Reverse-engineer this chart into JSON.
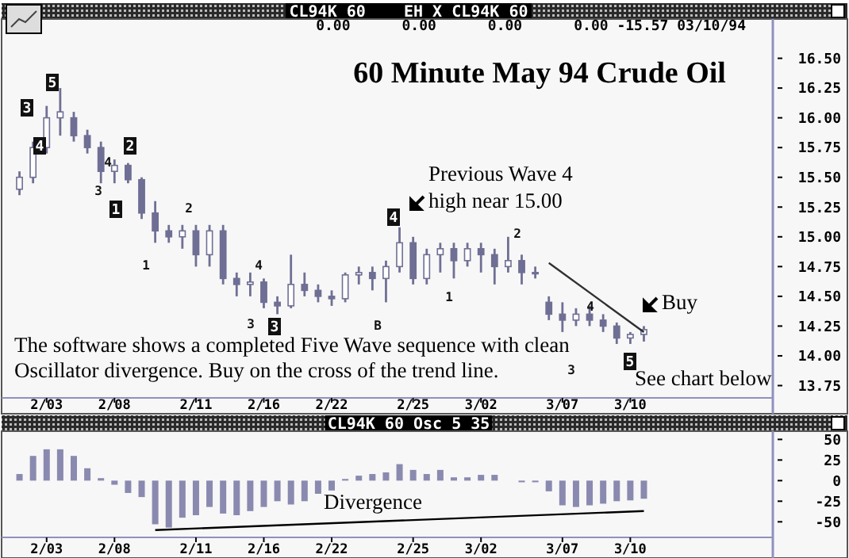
{
  "chart_data": [
    {
      "type": "candlestick",
      "title": "60 Minute May 94 Crude Oil",
      "subtitle": "CL94K 60    EH X CL94K 60",
      "color": "#6f6f95",
      "categories": [
        null,
        null,
        "2/03",
        null,
        null,
        null,
        null,
        "2/08",
        null,
        null,
        null,
        null,
        null,
        "2/11",
        null,
        null,
        null,
        null,
        "2/16",
        null,
        null,
        null,
        null,
        "2/22",
        null,
        null,
        null,
        null,
        null,
        "2/25",
        null,
        null,
        null,
        null,
        "3/02",
        null,
        null,
        null,
        null,
        null,
        "3/07",
        null,
        null,
        null,
        null,
        "3/10",
        null,
        null,
        null,
        null,
        null,
        null,
        null,
        null,
        null,
        null
      ],
      "ohlc": [
        [
          15.4,
          15.55,
          15.35,
          15.5
        ],
        [
          15.5,
          15.8,
          15.45,
          15.75
        ],
        [
          15.75,
          16.1,
          15.7,
          16.0
        ],
        [
          16.0,
          16.25,
          15.85,
          16.05
        ],
        [
          16.0,
          16.05,
          15.8,
          15.85
        ],
        [
          15.85,
          15.9,
          15.7,
          15.75
        ],
        [
          15.75,
          15.8,
          15.45,
          15.55
        ],
        [
          15.55,
          15.65,
          15.45,
          15.6
        ],
        [
          15.6,
          15.62,
          15.45,
          15.48
        ],
        [
          15.48,
          15.5,
          15.15,
          15.2
        ],
        [
          15.2,
          15.3,
          14.95,
          15.05
        ],
        [
          15.05,
          15.1,
          14.95,
          15.0
        ],
        [
          15.0,
          15.1,
          14.9,
          15.05
        ],
        [
          15.05,
          15.1,
          14.75,
          14.85
        ],
        [
          14.85,
          15.1,
          14.75,
          15.05
        ],
        [
          15.05,
          15.1,
          14.6,
          14.65
        ],
        [
          14.65,
          14.7,
          14.5,
          14.6
        ],
        [
          14.6,
          14.7,
          14.5,
          14.62
        ],
        [
          14.62,
          14.65,
          14.4,
          14.45
        ],
        [
          14.45,
          14.5,
          14.35,
          14.42
        ],
        [
          14.42,
          14.85,
          14.4,
          14.6
        ],
        [
          14.6,
          14.7,
          14.5,
          14.55
        ],
        [
          14.55,
          14.6,
          14.45,
          14.5
        ],
        [
          14.5,
          14.55,
          14.42,
          14.48
        ],
        [
          14.48,
          14.7,
          14.45,
          14.68
        ],
        [
          14.68,
          14.75,
          14.6,
          14.7
        ],
        [
          14.7,
          14.75,
          14.55,
          14.65
        ],
        [
          14.65,
          14.8,
          14.45,
          14.75
        ],
        [
          14.75,
          15.08,
          14.7,
          14.95
        ],
        [
          14.95,
          15.0,
          14.6,
          14.65
        ],
        [
          14.65,
          14.9,
          14.6,
          14.85
        ],
        [
          14.85,
          14.95,
          14.7,
          14.9
        ],
        [
          14.9,
          14.95,
          14.65,
          14.8
        ],
        [
          14.8,
          14.95,
          14.75,
          14.9
        ],
        [
          14.9,
          14.95,
          14.7,
          14.85
        ],
        [
          14.85,
          14.9,
          14.6,
          14.75
        ],
        [
          14.75,
          15.0,
          14.7,
          14.8
        ],
        [
          14.8,
          14.85,
          14.6,
          14.7
        ],
        [
          14.7,
          14.75,
          14.65,
          14.7
        ],
        [
          14.45,
          14.5,
          14.3,
          14.35
        ],
        [
          14.35,
          14.45,
          14.2,
          14.3
        ],
        [
          14.3,
          14.4,
          14.25,
          14.35
        ],
        [
          14.35,
          14.42,
          14.25,
          14.3
        ],
        [
          14.3,
          14.35,
          14.2,
          14.25
        ],
        [
          14.25,
          14.28,
          14.1,
          14.15
        ],
        [
          14.15,
          14.2,
          14.1,
          14.18
        ],
        [
          14.18,
          14.25,
          14.12,
          14.22
        ],
        null,
        null,
        null,
        null,
        null,
        null,
        null,
        null,
        null
      ],
      "series": [
        {
          "type": "line",
          "color": "#303030",
          "values": [
            null,
            null,
            null,
            null,
            null,
            null,
            null,
            null,
            null,
            null,
            null,
            null,
            null,
            null,
            null,
            null,
            null,
            null,
            null,
            null,
            null,
            null,
            null,
            null,
            null,
            null,
            null,
            null,
            null,
            null,
            null,
            null,
            null,
            null,
            null,
            null,
            null,
            null,
            null,
            14.78,
            null,
            null,
            null,
            null,
            null,
            null,
            14.2,
            null,
            null,
            null,
            null,
            null,
            null,
            null,
            null,
            null
          ]
        }
      ],
      "ylim": [
        13.66,
        16.83
      ],
      "yticks": [
        {
          "value": 13.75,
          "label": "13.75"
        },
        {
          "value": 14,
          "label": "14.00"
        },
        {
          "value": 14.25,
          "label": "14.25"
        },
        {
          "value": 14.5,
          "label": "14.50"
        },
        {
          "value": 14.75,
          "label": "14.75"
        },
        {
          "value": 15,
          "label": "15.00"
        },
        {
          "value": 15.25,
          "label": "15.25"
        },
        {
          "value": 15.5,
          "label": "15.50"
        },
        {
          "value": 15.75,
          "label": "15.75"
        },
        {
          "value": 16,
          "label": "16.00"
        },
        {
          "value": 16.25,
          "label": "16.25"
        },
        {
          "value": 16.5,
          "label": "16.50"
        }
      ],
      "annotations": [
        "0.00      0.00      0.00      0.00 -15.57 03/10/94",
        "The software shows a completed Five Wave sequence with clean\nOscillator divergence. Buy on the cross of the trend line.",
        "See chart below",
        "3",
        "4",
        "5",
        "3",
        "4",
        "1",
        "2",
        "1",
        "2",
        "3",
        "4",
        "3",
        "B",
        "4",
        "1",
        "2",
        "3",
        "4",
        "5",
        "Previous Wave 4\nhigh near 15.00",
        "Buy"
      ]
    },
    {
      "type": "bar",
      "subtitle": "CL94K 60 Osc 5 35",
      "color": "#8a8ab0",
      "categories": [
        null,
        null,
        "2/03",
        null,
        null,
        null,
        null,
        "2/08",
        null,
        null,
        null,
        null,
        null,
        "2/11",
        null,
        null,
        null,
        null,
        "2/16",
        null,
        null,
        null,
        null,
        "2/22",
        null,
        null,
        null,
        null,
        null,
        "2/25",
        null,
        null,
        null,
        null,
        "3/02",
        null,
        null,
        null,
        null,
        null,
        "3/07",
        null,
        null,
        null,
        null,
        "3/10",
        null,
        null,
        null,
        null,
        null,
        null,
        null,
        null,
        null,
        null
      ],
      "values": [
        8,
        30,
        38,
        38,
        30,
        15,
        3,
        -5,
        -15,
        -20,
        -53,
        -57,
        -45,
        -42,
        -32,
        -40,
        -42,
        -37,
        -32,
        -25,
        -29,
        -25,
        -16,
        -12,
        2,
        6,
        8,
        10,
        20,
        13,
        8,
        13,
        4,
        4,
        7,
        7,
        0,
        -2,
        -2,
        -13,
        -30,
        -32,
        -30,
        -28,
        -25,
        -24,
        -22,
        null,
        null,
        null,
        null,
        null,
        null,
        null,
        null,
        null
      ],
      "series": [
        {
          "type": "line",
          "color": "#000000",
          "values": [
            null,
            null,
            null,
            null,
            null,
            null,
            null,
            null,
            null,
            null,
            -60,
            null,
            null,
            null,
            null,
            null,
            null,
            null,
            null,
            null,
            null,
            null,
            null,
            null,
            null,
            null,
            null,
            null,
            null,
            null,
            null,
            null,
            null,
            null,
            null,
            null,
            null,
            null,
            null,
            null,
            null,
            null,
            null,
            null,
            null,
            null,
            -37,
            null,
            null,
            null,
            null,
            null,
            null,
            null,
            null,
            null
          ]
        }
      ],
      "ylim": [
        -67,
        60
      ],
      "yticks": [
        -50,
        -25,
        0,
        25,
        50
      ],
      "annotations": [
        "Divergence"
      ]
    }
  ]
}
